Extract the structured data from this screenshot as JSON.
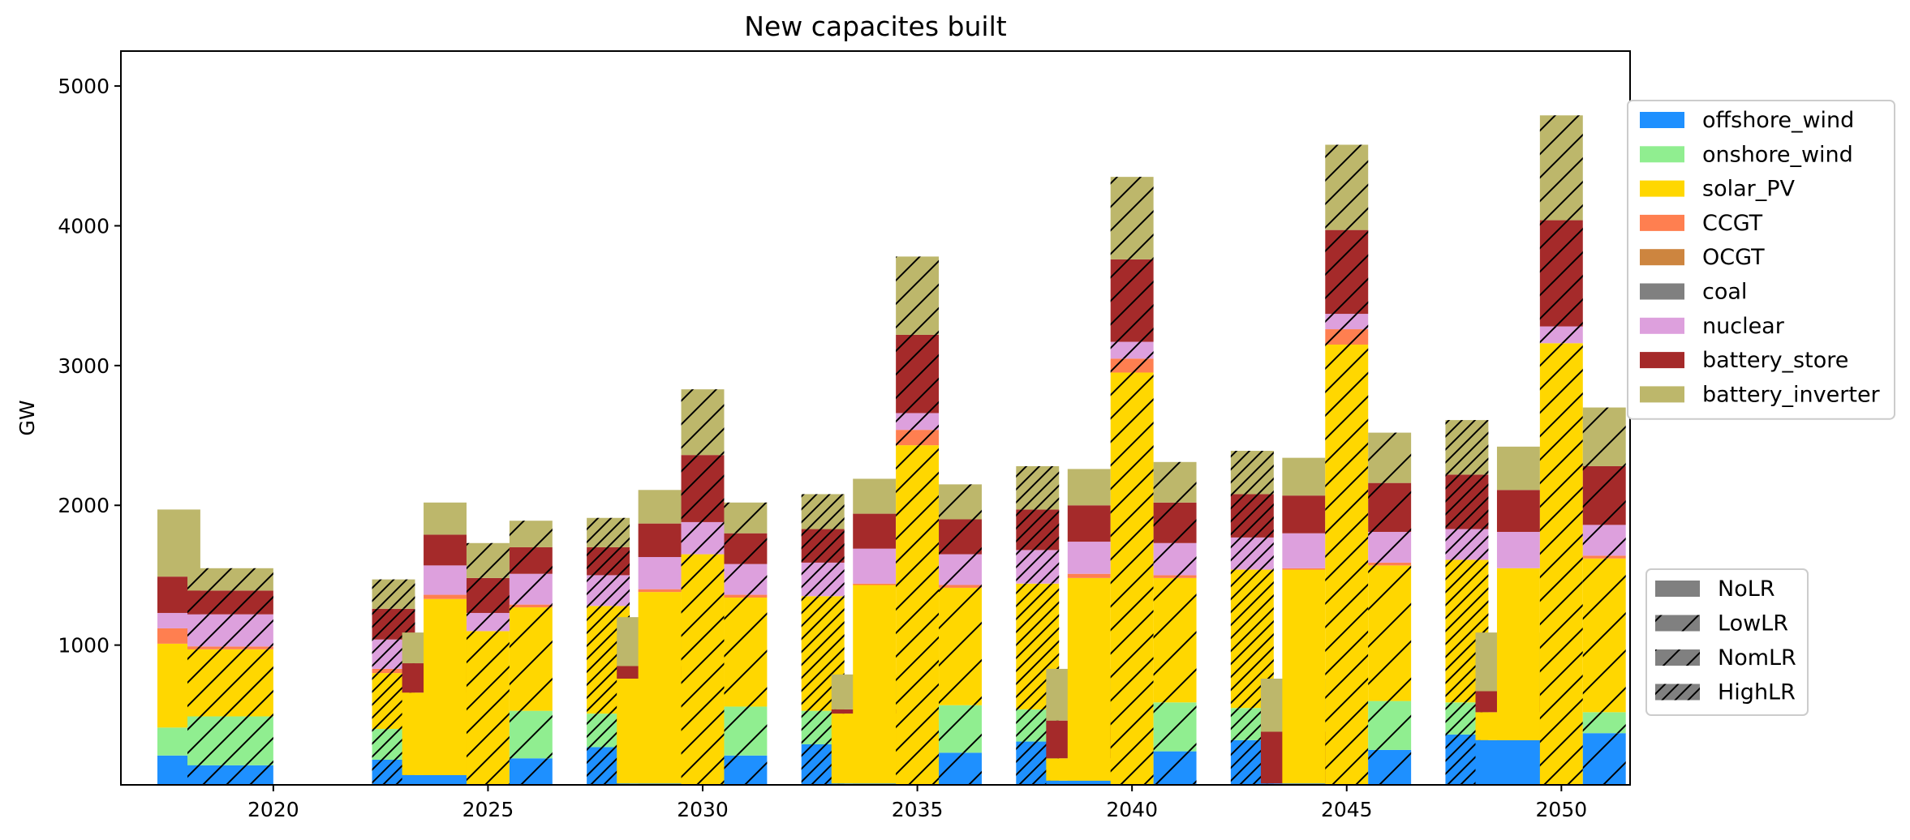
{
  "chart_data": {
    "type": "bar",
    "title": "New capacites built",
    "ylabel": "GW",
    "xlabel": "",
    "ylim": [
      0,
      5250
    ],
    "xlim": [
      2016.45,
      2051.6
    ],
    "yticks": [
      1000,
      2000,
      3000,
      4000,
      5000
    ],
    "xticks": [
      2020,
      2025,
      2030,
      2035,
      2040,
      2045,
      2050
    ],
    "grid": false,
    "stacking_order": [
      "offshore_wind",
      "onshore_wind",
      "solar_PV",
      "CCGT",
      "OCGT",
      "coal",
      "nuclear",
      "battery_store",
      "battery_inverter"
    ],
    "technologies": [
      {
        "name": "offshore_wind",
        "color": "#1E90FF"
      },
      {
        "name": "onshore_wind",
        "color": "#90EE90"
      },
      {
        "name": "solar_PV",
        "color": "#FFD700"
      },
      {
        "name": "CCGT",
        "color": "#FF7F50"
      },
      {
        "name": "OCGT",
        "color": "#CD853F"
      },
      {
        "name": "coal",
        "color": "#808080"
      },
      {
        "name": "nuclear",
        "color": "#DDA0DD"
      },
      {
        "name": "battery_store",
        "color": "#A52A2A"
      },
      {
        "name": "battery_inverter",
        "color": "#BDB76B"
      }
    ],
    "scenarios": [
      {
        "name": "NoLR",
        "hatch": "none"
      },
      {
        "name": "LowLR",
        "hatch": "sparse"
      },
      {
        "name": "NomLR",
        "hatch": "medium"
      },
      {
        "name": "HighLR",
        "hatch": "dense"
      }
    ],
    "legend_technologies_position": "right-top",
    "legend_scenarios_position": "right-bottom",
    "bars": [
      {
        "year": 2020,
        "scenario": "NoLR",
        "values": {
          "offshore_wind": 210,
          "onshore_wind": 200,
          "solar_PV": 600,
          "CCGT": 110,
          "OCGT": 0,
          "coal": 0,
          "nuclear": 110,
          "battery_store": 260,
          "battery_inverter": 480
        }
      },
      {
        "year": 2020,
        "scenario": "NomLR",
        "values": {
          "offshore_wind": 140,
          "onshore_wind": 350,
          "solar_PV": 480,
          "CCGT": 20,
          "OCGT": 0,
          "coal": 0,
          "nuclear": 230,
          "battery_store": 170,
          "battery_inverter": 160
        }
      },
      {
        "year": 2025,
        "scenario": "HighLR",
        "values": {
          "offshore_wind": 180,
          "onshore_wind": 220,
          "solar_PV": 400,
          "CCGT": 30,
          "OCGT": 0,
          "coal": 0,
          "nuclear": 210,
          "battery_store": 220,
          "battery_inverter": 210
        }
      },
      {
        "year": 2025,
        "scenario": "NoLR",
        "values": {
          "offshore_wind": 70,
          "onshore_wind": 0,
          "solar_PV": 590,
          "CCGT": 0,
          "OCGT": 0,
          "coal": 0,
          "nuclear": 0,
          "battery_store": 210,
          "battery_inverter": 220
        }
      },
      {
        "year": 2025,
        "scenario": "NoLR",
        "values": {
          "offshore_wind": 70,
          "onshore_wind": 0,
          "solar_PV": 1260,
          "CCGT": 30,
          "OCGT": 0,
          "coal": 0,
          "nuclear": 210,
          "battery_store": 220,
          "battery_inverter": 230
        }
      },
      {
        "year": 2025,
        "scenario": "NomLR",
        "values": {
          "offshore_wind": 0,
          "onshore_wind": 0,
          "solar_PV": 1100,
          "CCGT": 0,
          "OCGT": 0,
          "coal": 0,
          "nuclear": 130,
          "battery_store": 250,
          "battery_inverter": 250
        }
      },
      {
        "year": 2025,
        "scenario": "LowLR",
        "values": {
          "offshore_wind": 190,
          "onshore_wind": 340,
          "solar_PV": 740,
          "CCGT": 20,
          "OCGT": 0,
          "coal": 0,
          "nuclear": 220,
          "battery_store": 190,
          "battery_inverter": 190
        }
      },
      {
        "year": 2030,
        "scenario": "HighLR",
        "values": {
          "offshore_wind": 270,
          "onshore_wind": 240,
          "solar_PV": 770,
          "CCGT": 0,
          "OCGT": 0,
          "coal": 0,
          "nuclear": 220,
          "battery_store": 200,
          "battery_inverter": 210
        }
      },
      {
        "year": 2030,
        "scenario": "NoLR",
        "values": {
          "offshore_wind": 10,
          "onshore_wind": 0,
          "solar_PV": 750,
          "CCGT": 0,
          "OCGT": 0,
          "coal": 0,
          "nuclear": 0,
          "battery_store": 90,
          "battery_inverter": 350
        }
      },
      {
        "year": 2030,
        "scenario": "NoLR",
        "values": {
          "offshore_wind": 10,
          "onshore_wind": 0,
          "solar_PV": 1370,
          "CCGT": 20,
          "OCGT": 0,
          "coal": 0,
          "nuclear": 230,
          "battery_store": 240,
          "battery_inverter": 240
        }
      },
      {
        "year": 2030,
        "scenario": "NomLR",
        "values": {
          "offshore_wind": 0,
          "onshore_wind": 0,
          "solar_PV": 1650,
          "CCGT": 0,
          "OCGT": 0,
          "coal": 0,
          "nuclear": 230,
          "battery_store": 480,
          "battery_inverter": 470
        }
      },
      {
        "year": 2030,
        "scenario": "LowLR",
        "values": {
          "offshore_wind": 210,
          "onshore_wind": 350,
          "solar_PV": 780,
          "CCGT": 20,
          "OCGT": 0,
          "coal": 0,
          "nuclear": 220,
          "battery_store": 220,
          "battery_inverter": 220
        }
      },
      {
        "year": 2035,
        "scenario": "HighLR",
        "values": {
          "offshore_wind": 290,
          "onshore_wind": 240,
          "solar_PV": 820,
          "CCGT": 0,
          "OCGT": 0,
          "coal": 0,
          "nuclear": 240,
          "battery_store": 240,
          "battery_inverter": 250
        }
      },
      {
        "year": 2035,
        "scenario": "NoLR",
        "values": {
          "offshore_wind": 10,
          "onshore_wind": 0,
          "solar_PV": 500,
          "CCGT": 0,
          "OCGT": 0,
          "coal": 0,
          "nuclear": 0,
          "battery_store": 30,
          "battery_inverter": 250
        }
      },
      {
        "year": 2035,
        "scenario": "NoLR",
        "values": {
          "offshore_wind": 10,
          "onshore_wind": 0,
          "solar_PV": 1420,
          "CCGT": 10,
          "OCGT": 0,
          "coal": 0,
          "nuclear": 250,
          "battery_store": 250,
          "battery_inverter": 250
        }
      },
      {
        "year": 2035,
        "scenario": "NomLR",
        "values": {
          "offshore_wind": 0,
          "onshore_wind": 0,
          "solar_PV": 2430,
          "CCGT": 110,
          "OCGT": 0,
          "coal": 0,
          "nuclear": 120,
          "battery_store": 560,
          "battery_inverter": 560
        }
      },
      {
        "year": 2035,
        "scenario": "LowLR",
        "values": {
          "offshore_wind": 230,
          "onshore_wind": 340,
          "solar_PV": 840,
          "CCGT": 20,
          "OCGT": 0,
          "coal": 0,
          "nuclear": 220,
          "battery_store": 250,
          "battery_inverter": 250
        }
      },
      {
        "year": 2040,
        "scenario": "HighLR",
        "values": {
          "offshore_wind": 310,
          "onshore_wind": 230,
          "solar_PV": 900,
          "CCGT": 0,
          "OCGT": 0,
          "coal": 0,
          "nuclear": 240,
          "battery_store": 290,
          "battery_inverter": 310
        }
      },
      {
        "year": 2040,
        "scenario": "NoLR",
        "values": {
          "offshore_wind": 30,
          "onshore_wind": 0,
          "solar_PV": 160,
          "CCGT": 0,
          "OCGT": 0,
          "coal": 0,
          "nuclear": 0,
          "battery_store": 270,
          "battery_inverter": 370
        }
      },
      {
        "year": 2040,
        "scenario": "NoLR",
        "values": {
          "offshore_wind": 30,
          "onshore_wind": 0,
          "solar_PV": 1450,
          "CCGT": 30,
          "OCGT": 0,
          "coal": 0,
          "nuclear": 230,
          "battery_store": 260,
          "battery_inverter": 260
        }
      },
      {
        "year": 2040,
        "scenario": "NomLR",
        "values": {
          "offshore_wind": 0,
          "onshore_wind": 0,
          "solar_PV": 2950,
          "CCGT": 100,
          "OCGT": 0,
          "coal": 0,
          "nuclear": 120,
          "battery_store": 590,
          "battery_inverter": 590
        }
      },
      {
        "year": 2040,
        "scenario": "LowLR",
        "values": {
          "offshore_wind": 240,
          "onshore_wind": 350,
          "solar_PV": 890,
          "CCGT": 20,
          "OCGT": 0,
          "coal": 0,
          "nuclear": 230,
          "battery_store": 290,
          "battery_inverter": 290
        }
      },
      {
        "year": 2045,
        "scenario": "HighLR",
        "values": {
          "offshore_wind": 320,
          "onshore_wind": 230,
          "solar_PV": 990,
          "CCGT": 0,
          "OCGT": 0,
          "coal": 0,
          "nuclear": 230,
          "battery_store": 310,
          "battery_inverter": 310
        }
      },
      {
        "year": 2045,
        "scenario": "NoLR",
        "values": {
          "offshore_wind": 10,
          "onshore_wind": 0,
          "solar_PV": 0,
          "CCGT": 0,
          "OCGT": 0,
          "coal": 0,
          "nuclear": 0,
          "battery_store": 370,
          "battery_inverter": 380
        }
      },
      {
        "year": 2045,
        "scenario": "NoLR",
        "values": {
          "offshore_wind": 10,
          "onshore_wind": 0,
          "solar_PV": 1530,
          "CCGT": 10,
          "OCGT": 0,
          "coal": 0,
          "nuclear": 250,
          "battery_store": 270,
          "battery_inverter": 270
        }
      },
      {
        "year": 2045,
        "scenario": "NomLR",
        "values": {
          "offshore_wind": 0,
          "onshore_wind": 0,
          "solar_PV": 3150,
          "CCGT": 110,
          "OCGT": 0,
          "coal": 0,
          "nuclear": 110,
          "battery_store": 600,
          "battery_inverter": 610
        }
      },
      {
        "year": 2045,
        "scenario": "LowLR",
        "values": {
          "offshore_wind": 250,
          "onshore_wind": 350,
          "solar_PV": 970,
          "CCGT": 20,
          "OCGT": 0,
          "coal": 0,
          "nuclear": 220,
          "battery_store": 350,
          "battery_inverter": 360
        }
      },
      {
        "year": 2050,
        "scenario": "HighLR",
        "values": {
          "offshore_wind": 360,
          "onshore_wind": 230,
          "solar_PV": 1020,
          "CCGT": 0,
          "OCGT": 0,
          "coal": 0,
          "nuclear": 220,
          "battery_store": 390,
          "battery_inverter": 390
        }
      },
      {
        "year": 2050,
        "scenario": "NoLR",
        "values": {
          "offshore_wind": 320,
          "onshore_wind": 0,
          "solar_PV": 200,
          "CCGT": 0,
          "OCGT": 0,
          "coal": 0,
          "nuclear": 0,
          "battery_store": 150,
          "battery_inverter": 420
        }
      },
      {
        "year": 2050,
        "scenario": "NoLR",
        "values": {
          "offshore_wind": 320,
          "onshore_wind": 0,
          "solar_PV": 1230,
          "CCGT": 0,
          "OCGT": 0,
          "coal": 0,
          "nuclear": 260,
          "battery_store": 300,
          "battery_inverter": 310
        }
      },
      {
        "year": 2050,
        "scenario": "NomLR",
        "values": {
          "offshore_wind": 0,
          "onshore_wind": 0,
          "solar_PV": 3160,
          "CCGT": 0,
          "OCGT": 0,
          "coal": 0,
          "nuclear": 120,
          "battery_store": 760,
          "battery_inverter": 750
        }
      },
      {
        "year": 2050,
        "scenario": "LowLR",
        "values": {
          "offshore_wind": 370,
          "onshore_wind": 150,
          "solar_PV": 1100,
          "CCGT": 20,
          "OCGT": 0,
          "coal": 0,
          "nuclear": 220,
          "battery_store": 420,
          "battery_inverter": 420
        }
      }
    ]
  }
}
